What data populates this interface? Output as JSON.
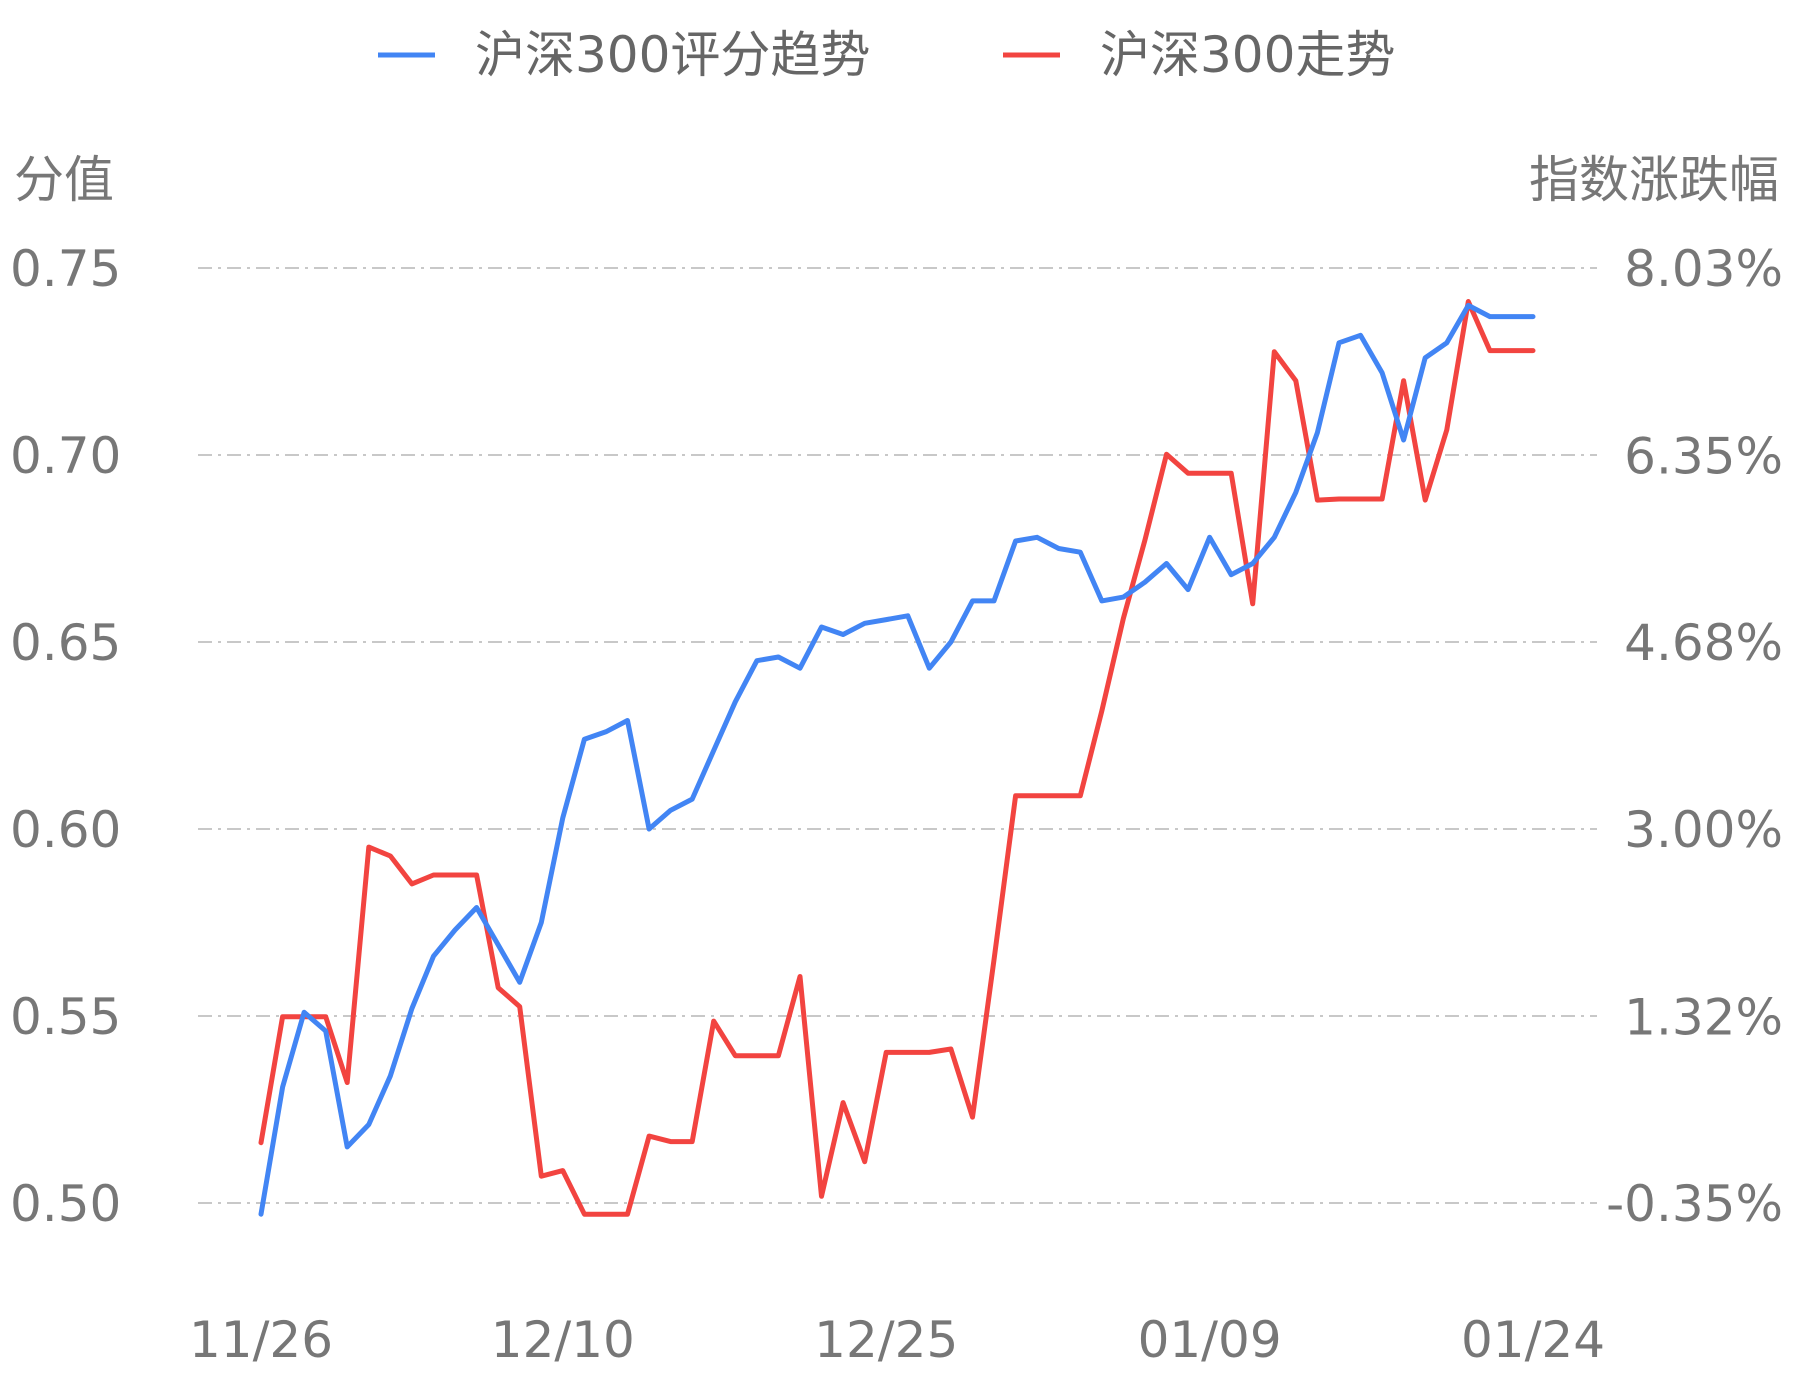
{
  "chart_data": {
    "type": "line",
    "x": [
      "11/26",
      "11/27",
      "11/28",
      "11/29",
      "11/30",
      "12/01",
      "12/02",
      "12/03",
      "12/04",
      "12/05",
      "12/06",
      "12/07",
      "12/08",
      "12/09",
      "12/10",
      "12/11",
      "12/12",
      "12/13",
      "12/14",
      "12/15",
      "12/16",
      "12/17",
      "12/18",
      "12/19",
      "12/20",
      "12/21",
      "12/22",
      "12/23",
      "12/24",
      "12/25",
      "12/26",
      "12/27",
      "12/28",
      "12/29",
      "12/30",
      "12/31",
      "01/01",
      "01/02",
      "01/03",
      "01/04",
      "01/05",
      "01/06",
      "01/07",
      "01/08",
      "01/09",
      "01/10",
      "01/11",
      "01/12",
      "01/13",
      "01/14",
      "01/15",
      "01/16",
      "01/17",
      "01/18",
      "01/19",
      "01/20",
      "01/21",
      "01/22",
      "01/23",
      "01/24"
    ],
    "x_ticks": [
      "11/26",
      "12/10",
      "12/25",
      "01/09",
      "01/24"
    ],
    "series": [
      {
        "name": "沪深300评分趋势",
        "axis": "left",
        "color": "#4285f4",
        "values": [
          0.497,
          0.531,
          0.551,
          0.546,
          0.515,
          0.521,
          0.534,
          0.552,
          0.566,
          0.573,
          0.579,
          0.569,
          0.559,
          0.575,
          0.603,
          0.624,
          0.626,
          0.629,
          0.6,
          0.605,
          0.608,
          0.621,
          0.634,
          0.645,
          0.646,
          0.643,
          0.654,
          0.652,
          0.655,
          0.656,
          0.657,
          0.643,
          0.65,
          0.661,
          0.661,
          0.677,
          0.678,
          0.675,
          0.674,
          0.661,
          0.662,
          0.666,
          0.671,
          0.664,
          0.678,
          0.668,
          0.671,
          0.678,
          0.69,
          0.706,
          0.73,
          0.732,
          0.722,
          0.704,
          0.726,
          0.73,
          0.74,
          0.737,
          0.737,
          0.737
        ]
      },
      {
        "name": "沪深300走势",
        "axis": "right",
        "color": "#f24440",
        "values": [
          0.19,
          1.32,
          1.32,
          1.32,
          0.73,
          2.84,
          2.76,
          2.51,
          2.59,
          2.59,
          2.59,
          1.58,
          1.41,
          -0.11,
          -0.06,
          -0.45,
          -0.45,
          -0.45,
          0.25,
          0.2,
          0.2,
          1.28,
          0.97,
          0.97,
          0.97,
          1.68,
          -0.29,
          0.55,
          0.02,
          1.0,
          1.0,
          1.0,
          1.03,
          0.42,
          1.83,
          3.3,
          3.3,
          3.3,
          3.3,
          4.06,
          4.89,
          5.59,
          6.36,
          6.19,
          6.19,
          6.19,
          5.02,
          7.28,
          7.02,
          5.95,
          5.96,
          5.96,
          5.96,
          7.02,
          5.95,
          6.58,
          7.73,
          7.29,
          7.29,
          7.29
        ]
      }
    ],
    "ylabel_left": "分值",
    "ylabel_right": "指数涨跌幅",
    "y_left_ticks": [
      "0.75",
      "0.70",
      "0.65",
      "0.60",
      "0.55",
      "0.50"
    ],
    "y_left_range": [
      0.5,
      0.75
    ],
    "y_right_ticks": [
      "8.03%",
      "6.35%",
      "4.68%",
      "3.00%",
      "1.32%",
      "-0.35%"
    ],
    "y_right_range": [
      -0.35,
      8.03
    ],
    "grid": true,
    "legend_position": "top-center"
  }
}
